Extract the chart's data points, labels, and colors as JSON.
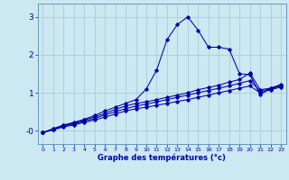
{
  "xlabel": "Graphe des températures (°c)",
  "bg_color": "#cce8f0",
  "grid_color": "#aaccdd",
  "line_color": "#0000aa",
  "spine_color": "#6699bb",
  "xlim": [
    -0.5,
    23.5
  ],
  "ylim": [
    -0.35,
    3.35
  ],
  "xticks": [
    0,
    1,
    2,
    3,
    4,
    5,
    6,
    7,
    8,
    9,
    10,
    11,
    12,
    13,
    14,
    15,
    16,
    17,
    18,
    19,
    20,
    21,
    22,
    23
  ],
  "yticks": [
    0,
    1,
    2,
    3
  ],
  "ytick_labels": [
    "-0",
    "1",
    "2",
    "3"
  ],
  "line_spike_x": [
    0,
    1,
    2,
    3,
    4,
    5,
    6,
    7,
    8,
    9,
    10,
    11,
    12,
    13,
    14,
    15,
    16,
    17,
    18,
    19,
    20,
    21,
    22,
    23
  ],
  "line_spike_y": [
    -0.05,
    0.05,
    0.15,
    0.22,
    0.3,
    0.4,
    0.52,
    0.62,
    0.72,
    0.82,
    1.1,
    1.6,
    2.4,
    2.8,
    3.0,
    2.65,
    2.2,
    2.2,
    2.15,
    1.5,
    1.48,
    0.95,
    1.12,
    1.22
  ],
  "line_upper_x": [
    0,
    1,
    2,
    3,
    4,
    5,
    6,
    7,
    8,
    9,
    10,
    11,
    12,
    13,
    14,
    15,
    16,
    17,
    18,
    19,
    20,
    21,
    22,
    23
  ],
  "line_upper_y": [
    -0.05,
    0.05,
    0.14,
    0.2,
    0.28,
    0.36,
    0.46,
    0.56,
    0.65,
    0.72,
    0.76,
    0.82,
    0.88,
    0.94,
    1.0,
    1.08,
    1.14,
    1.2,
    1.28,
    1.35,
    1.52,
    1.08,
    1.12,
    1.2
  ],
  "line_mid_x": [
    0,
    1,
    2,
    3,
    4,
    5,
    6,
    7,
    8,
    9,
    10,
    11,
    12,
    13,
    14,
    15,
    16,
    17,
    18,
    19,
    20,
    21,
    22,
    23
  ],
  "line_mid_y": [
    -0.05,
    0.04,
    0.12,
    0.18,
    0.25,
    0.32,
    0.42,
    0.5,
    0.58,
    0.65,
    0.7,
    0.76,
    0.82,
    0.88,
    0.94,
    1.0,
    1.06,
    1.12,
    1.18,
    1.25,
    1.32,
    1.05,
    1.1,
    1.18
  ],
  "line_low_x": [
    0,
    1,
    2,
    3,
    4,
    5,
    6,
    7,
    8,
    9,
    10,
    11,
    12,
    13,
    14,
    15,
    16,
    17,
    18,
    19,
    20,
    21,
    22,
    23
  ],
  "line_low_y": [
    -0.05,
    0.02,
    0.1,
    0.15,
    0.22,
    0.28,
    0.36,
    0.44,
    0.52,
    0.58,
    0.62,
    0.67,
    0.72,
    0.77,
    0.82,
    0.88,
    0.94,
    1.0,
    1.06,
    1.12,
    1.18,
    1.0,
    1.08,
    1.15
  ]
}
